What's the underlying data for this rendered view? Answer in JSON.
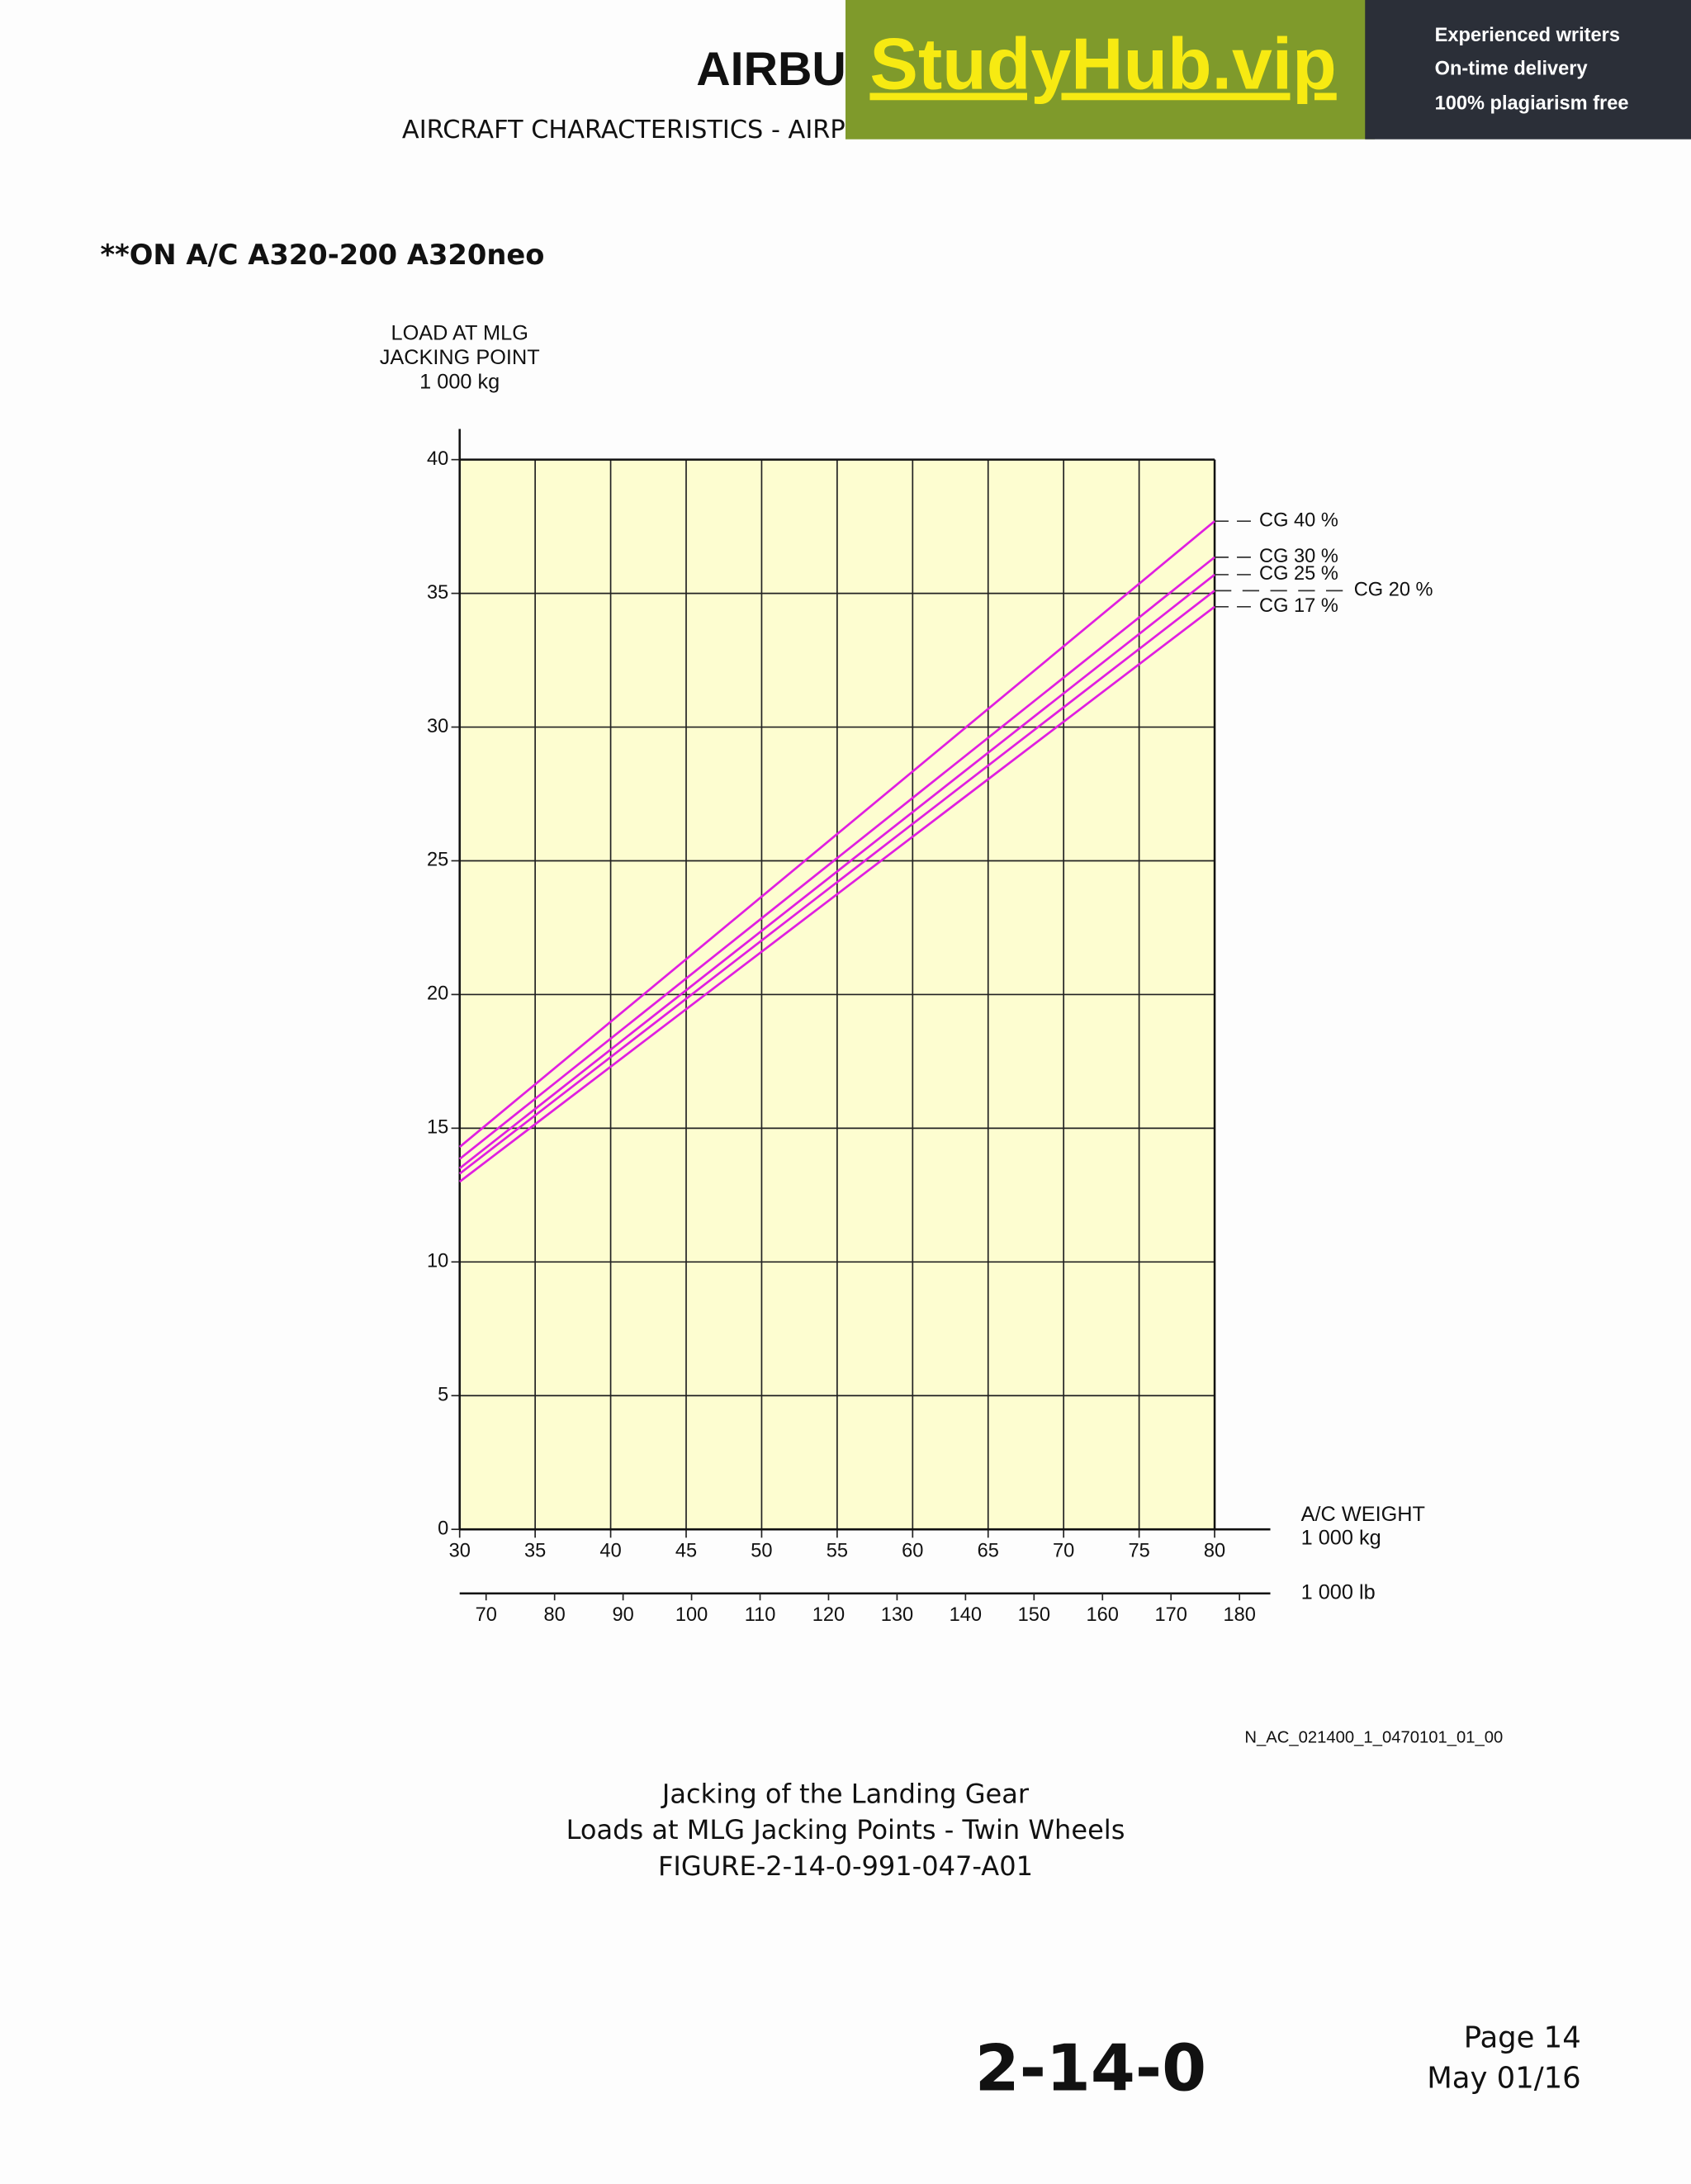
{
  "header": {
    "logo": "AIRBUS",
    "title": "AIRCRAFT CHARACTERISTICS - AIRPORT AND MAINTENANCE PLANNING"
  },
  "ad": {
    "brand": "StudyHub.vip",
    "features": [
      "Experienced writers",
      "On-time delivery",
      "100% plagiarism free"
    ]
  },
  "applicability": "**ON A/C A320-200 A320neo",
  "chart_data": {
    "type": "line",
    "y_label": [
      "LOAD AT MLG",
      "JACKING POINT",
      "1 000 kg"
    ],
    "x_label": [
      "A/C WEIGHT",
      "1 000 kg"
    ],
    "x2_label": "1 000 lb",
    "x": [
      30,
      80
    ],
    "series": [
      {
        "name": "CG 40 %",
        "color": "#e01ee0",
        "values": [
          14.3,
          37.7
        ]
      },
      {
        "name": "CG 30 %",
        "color": "#e01ee0",
        "values": [
          13.85,
          36.35
        ]
      },
      {
        "name": "CG 25 %",
        "color": "#e01ee0",
        "values": [
          13.5,
          35.7
        ]
      },
      {
        "name": "CG 20 %",
        "color": "#e01ee0",
        "values": [
          13.3,
          35.1
        ]
      },
      {
        "name": "CG 17 %",
        "color": "#e01ee0",
        "values": [
          13.0,
          34.5
        ]
      }
    ],
    "xlim": [
      30,
      80
    ],
    "xticks": [
      30,
      35,
      40,
      45,
      50,
      55,
      60,
      65,
      70,
      75,
      80
    ],
    "ylim": [
      0,
      40
    ],
    "yticks": [
      0,
      5,
      10,
      15,
      20,
      25,
      30,
      35,
      40
    ],
    "x2lim": [
      66.14,
      176.37
    ],
    "x2ticks": [
      70,
      80,
      90,
      100,
      110,
      120,
      130,
      140,
      150,
      160,
      170,
      180
    ],
    "grid": true,
    "background": "#fdfdd0"
  },
  "figure_id": "N_AC_021400_1_0470101_01_00",
  "caption": [
    "Jacking of the Landing Gear",
    "Loads at MLG Jacking Points - Twin Wheels",
    "FIGURE-2-14-0-991-047-A01"
  ],
  "footer": {
    "section": "2-14-0",
    "page": "Page 14",
    "date": "May 01/16"
  }
}
